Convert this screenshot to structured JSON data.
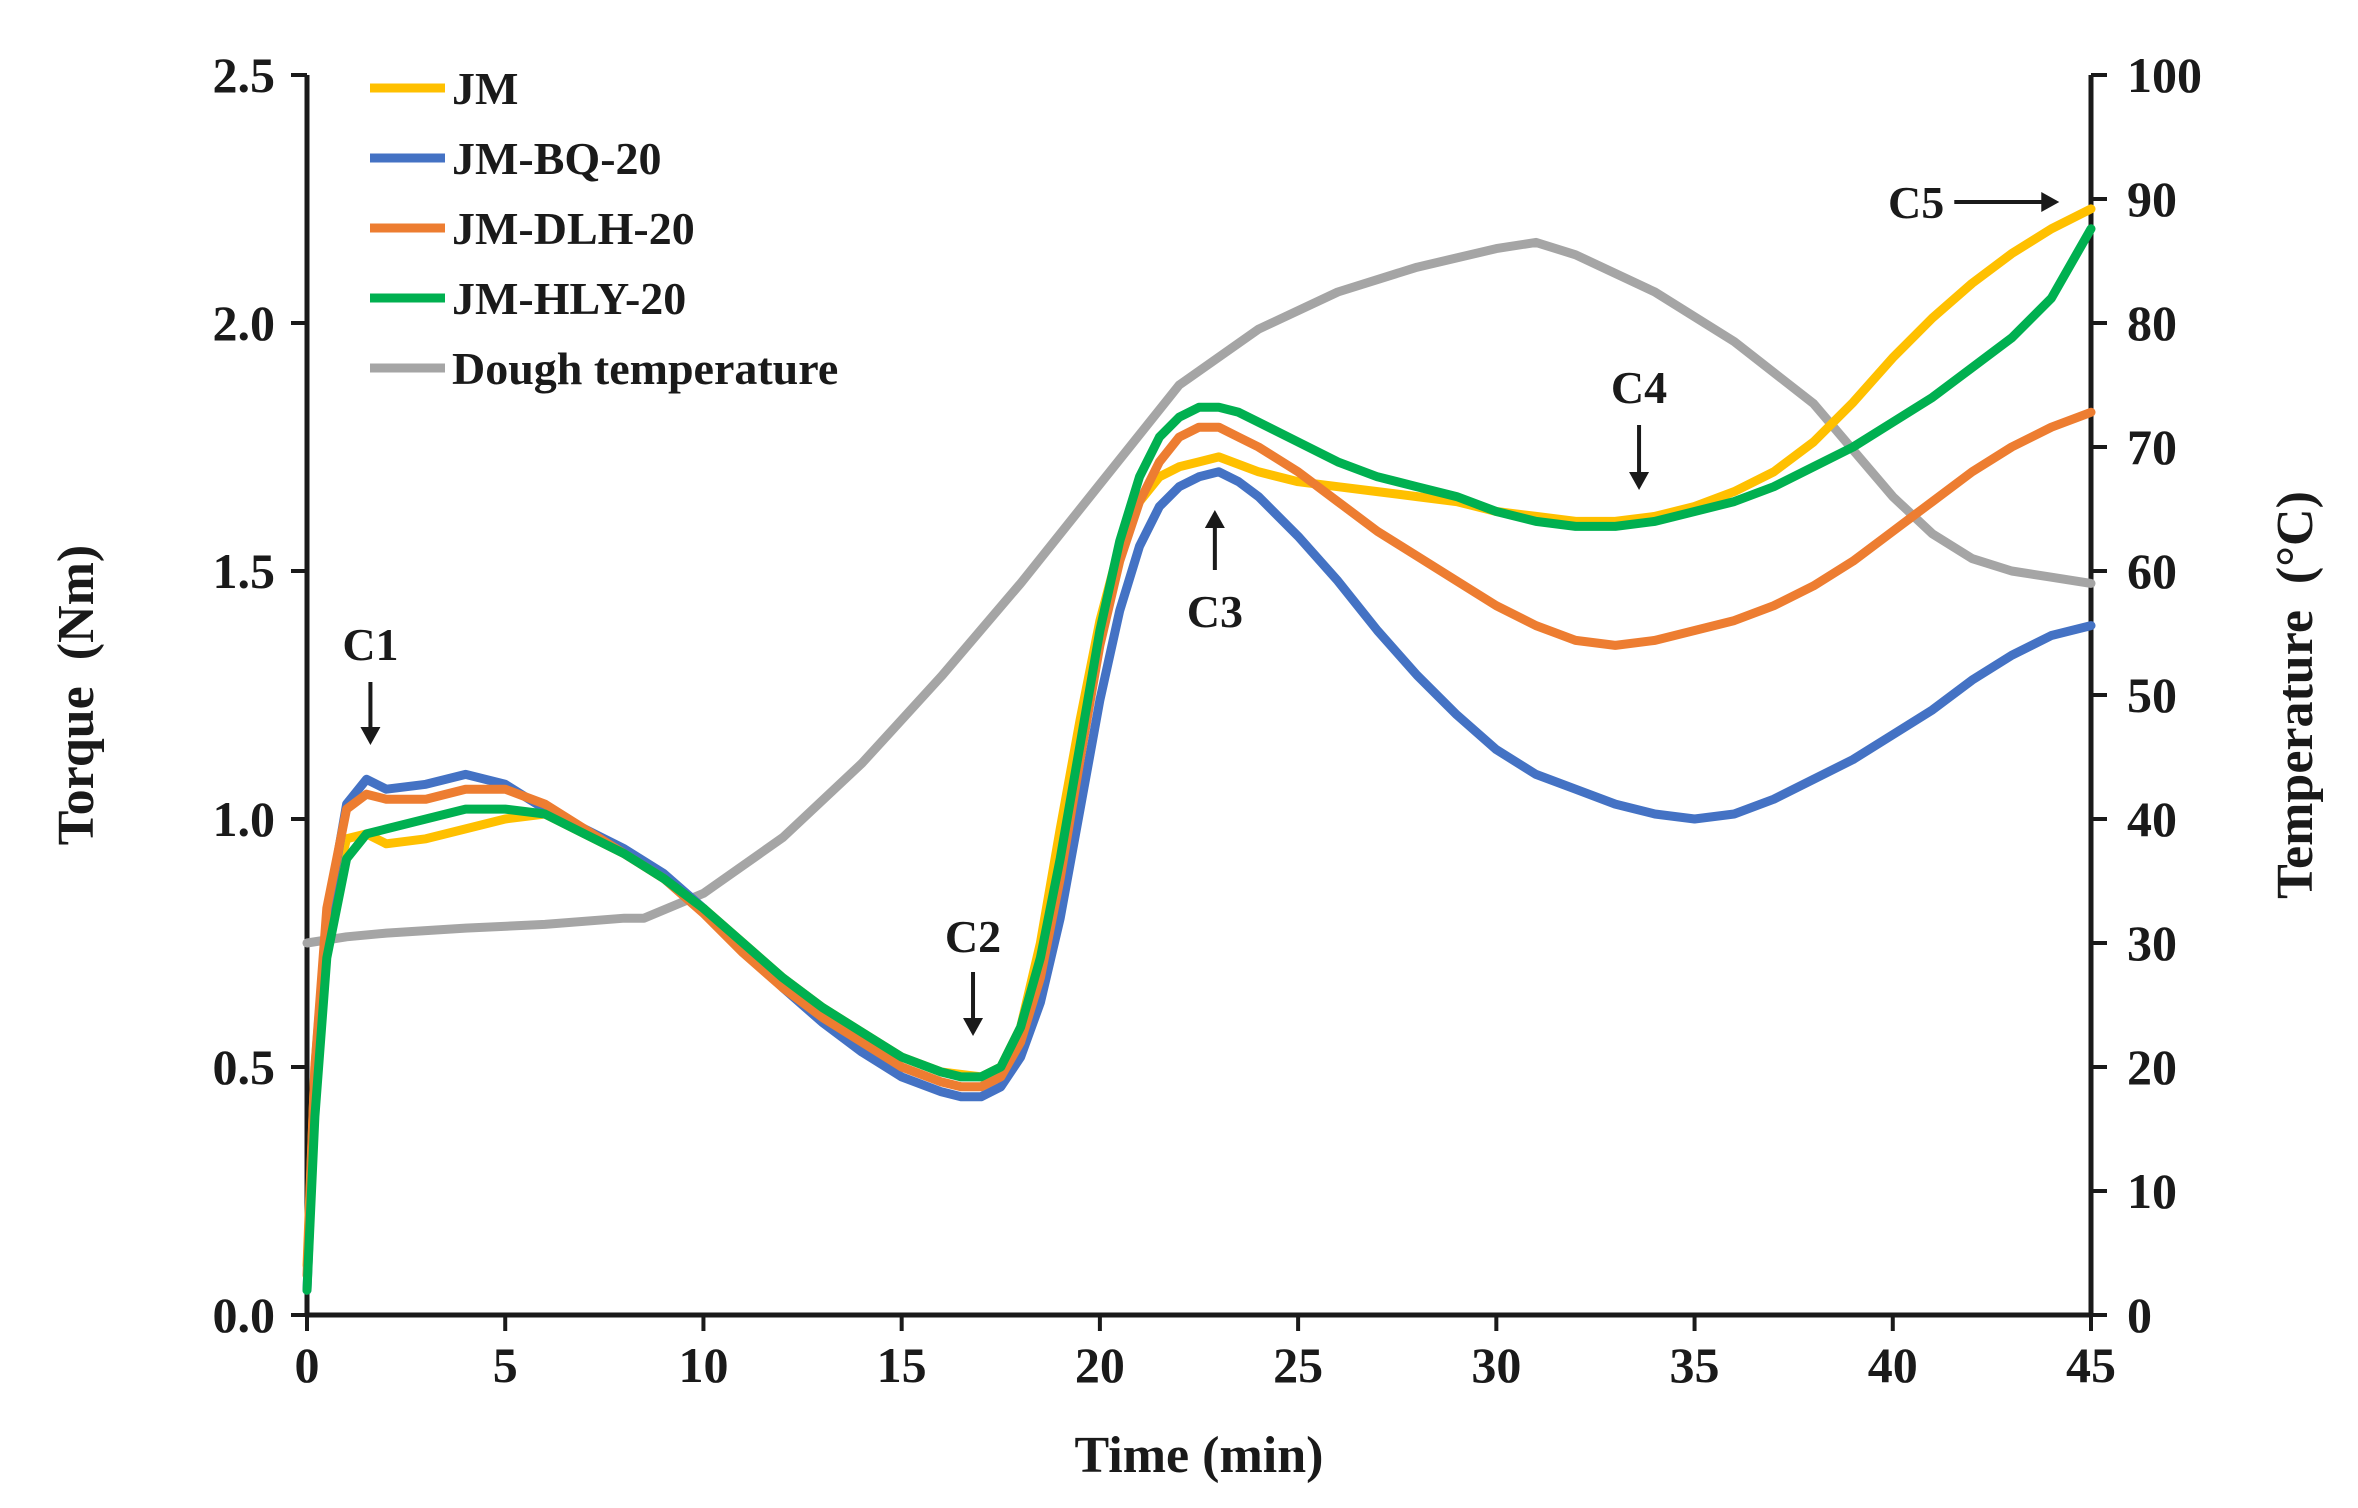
{
  "chart_data": {
    "type": "line",
    "title": "",
    "xlabel": "Time (min)",
    "ylabel": "Torque  (Nm)",
    "y2label": "Temperature  (°C)",
    "xlim": [
      0,
      45
    ],
    "ylim": [
      0,
      2.5
    ],
    "y2lim": [
      0,
      100
    ],
    "x_ticks": [
      0,
      5,
      10,
      15,
      20,
      25,
      30,
      35,
      40,
      45
    ],
    "y_ticks": [
      "0.0",
      "0.5",
      "1.0",
      "1.5",
      "2.0",
      "2.5"
    ],
    "y2_ticks": [
      "0",
      "10",
      "20",
      "30",
      "40",
      "50",
      "60",
      "70",
      "80",
      "90",
      "100"
    ],
    "grid": false,
    "legend_position": "top-left",
    "series": [
      {
        "name": "JM",
        "axis": "left",
        "color": "#FFC000",
        "x": [
          0,
          0.2,
          0.5,
          1,
          1.5,
          2,
          3,
          4,
          5,
          6,
          7,
          8,
          9,
          10,
          11,
          12,
          13,
          14,
          15,
          16,
          17,
          17.5,
          18,
          18.5,
          19,
          19.5,
          20,
          20.5,
          21,
          21.5,
          22,
          22.5,
          23,
          24,
          25,
          26,
          27,
          28,
          29,
          30,
          31,
          32,
          33,
          34,
          35,
          36,
          37,
          38,
          39,
          40,
          41,
          42,
          43,
          44,
          45
        ],
        "values": [
          0.1,
          0.5,
          0.8,
          0.96,
          0.97,
          0.95,
          0.96,
          0.98,
          1.0,
          1.01,
          0.97,
          0.93,
          0.88,
          0.82,
          0.75,
          0.68,
          0.62,
          0.57,
          0.52,
          0.49,
          0.48,
          0.5,
          0.58,
          0.75,
          0.98,
          1.2,
          1.4,
          1.55,
          1.64,
          1.69,
          1.71,
          1.72,
          1.73,
          1.7,
          1.68,
          1.67,
          1.66,
          1.65,
          1.64,
          1.62,
          1.61,
          1.6,
          1.6,
          1.61,
          1.63,
          1.66,
          1.7,
          1.76,
          1.84,
          1.93,
          2.01,
          2.08,
          2.14,
          2.19,
          2.23
        ]
      },
      {
        "name": "JM-BQ-20",
        "axis": "left",
        "color": "#4472C4",
        "x": [
          0,
          0.2,
          0.5,
          1,
          1.5,
          2,
          3,
          4,
          5,
          6,
          7,
          8,
          9,
          10,
          11,
          12,
          13,
          14,
          15,
          16,
          16.5,
          17,
          17.5,
          18,
          18.5,
          19,
          19.5,
          20,
          20.5,
          21,
          21.5,
          22,
          22.5,
          23,
          23.5,
          24,
          25,
          26,
          27,
          28,
          29,
          30,
          31,
          32,
          33,
          34,
          35,
          36,
          37,
          38,
          39,
          40,
          41,
          42,
          43,
          44,
          45
        ],
        "values": [
          0.05,
          0.45,
          0.8,
          1.03,
          1.08,
          1.06,
          1.07,
          1.09,
          1.07,
          1.02,
          0.98,
          0.94,
          0.89,
          0.82,
          0.74,
          0.66,
          0.59,
          0.53,
          0.48,
          0.45,
          0.44,
          0.44,
          0.46,
          0.52,
          0.63,
          0.8,
          1.02,
          1.24,
          1.42,
          1.55,
          1.63,
          1.67,
          1.69,
          1.7,
          1.68,
          1.65,
          1.57,
          1.48,
          1.38,
          1.29,
          1.21,
          1.14,
          1.09,
          1.06,
          1.03,
          1.01,
          1.0,
          1.01,
          1.04,
          1.08,
          1.12,
          1.17,
          1.22,
          1.28,
          1.33,
          1.37,
          1.39
        ]
      },
      {
        "name": "JM-DLH-20",
        "axis": "left",
        "color": "#ED7D31",
        "x": [
          0,
          0.2,
          0.5,
          1,
          1.5,
          2,
          3,
          4,
          5,
          6,
          7,
          8,
          9,
          10,
          11,
          12,
          13,
          14,
          15,
          16,
          16.5,
          17,
          17.5,
          18,
          18.5,
          19,
          19.5,
          20,
          20.5,
          21,
          21.5,
          22,
          22.5,
          23,
          23.5,
          24,
          25,
          26,
          27,
          28,
          29,
          30,
          31,
          32,
          33,
          34,
          35,
          36,
          37,
          38,
          39,
          40,
          41,
          42,
          43,
          44,
          45
        ],
        "values": [
          0.08,
          0.5,
          0.82,
          1.02,
          1.05,
          1.04,
          1.04,
          1.06,
          1.06,
          1.03,
          0.98,
          0.93,
          0.88,
          0.81,
          0.73,
          0.66,
          0.6,
          0.55,
          0.5,
          0.47,
          0.46,
          0.46,
          0.48,
          0.55,
          0.68,
          0.88,
          1.12,
          1.35,
          1.52,
          1.64,
          1.72,
          1.77,
          1.79,
          1.79,
          1.77,
          1.75,
          1.7,
          1.64,
          1.58,
          1.53,
          1.48,
          1.43,
          1.39,
          1.36,
          1.35,
          1.36,
          1.38,
          1.4,
          1.43,
          1.47,
          1.52,
          1.58,
          1.64,
          1.7,
          1.75,
          1.79,
          1.82
        ]
      },
      {
        "name": "JM-HLY-20",
        "axis": "left",
        "color": "#00B050",
        "x": [
          0,
          0.2,
          0.5,
          1,
          1.5,
          2,
          3,
          4,
          5,
          6,
          7,
          8,
          9,
          10,
          11,
          12,
          13,
          14,
          15,
          16,
          16.5,
          17,
          17.5,
          18,
          18.5,
          19,
          19.5,
          20,
          20.5,
          21,
          21.5,
          22,
          22.5,
          23,
          23.5,
          24,
          25,
          26,
          27,
          28,
          29,
          30,
          31,
          32,
          33,
          34,
          35,
          36,
          37,
          38,
          39,
          40,
          41,
          42,
          43,
          44,
          45
        ],
        "values": [
          0.05,
          0.4,
          0.72,
          0.92,
          0.97,
          0.98,
          1.0,
          1.02,
          1.02,
          1.01,
          0.97,
          0.93,
          0.88,
          0.82,
          0.75,
          0.68,
          0.62,
          0.57,
          0.52,
          0.49,
          0.48,
          0.48,
          0.5,
          0.58,
          0.72,
          0.92,
          1.15,
          1.38,
          1.56,
          1.69,
          1.77,
          1.81,
          1.83,
          1.83,
          1.82,
          1.8,
          1.76,
          1.72,
          1.69,
          1.67,
          1.65,
          1.62,
          1.6,
          1.59,
          1.59,
          1.6,
          1.62,
          1.64,
          1.67,
          1.71,
          1.75,
          1.8,
          1.85,
          1.91,
          1.97,
          2.05,
          2.19
        ]
      },
      {
        "name": "Dough temperature",
        "axis": "right",
        "color": "#A5A5A5",
        "x": [
          0,
          1,
          2,
          4,
          6,
          8,
          8.5,
          10,
          12,
          14,
          16,
          18,
          20,
          22,
          24,
          26,
          28,
          30,
          31,
          32,
          34,
          36,
          38,
          40,
          41,
          42,
          43,
          44,
          45
        ],
        "values": [
          30,
          30.5,
          30.8,
          31.2,
          31.5,
          32,
          32,
          34,
          38.5,
          44.5,
          51.5,
          59,
          67,
          75,
          79.5,
          82.5,
          84.5,
          86,
          86.5,
          85.5,
          82.5,
          78.5,
          73.5,
          66,
          63,
          61,
          60,
          59.5,
          59
        ]
      }
    ],
    "annotations": [
      {
        "label": "C1",
        "x": 1.6,
        "arrow": "down"
      },
      {
        "label": "C2",
        "x": 16.8,
        "arrow": "down"
      },
      {
        "label": "C3",
        "x": 22.9,
        "arrow": "up"
      },
      {
        "label": "C4",
        "x": 33.6,
        "arrow": "down"
      },
      {
        "label": "C5",
        "x": 44.2,
        "arrow": "right"
      }
    ]
  }
}
